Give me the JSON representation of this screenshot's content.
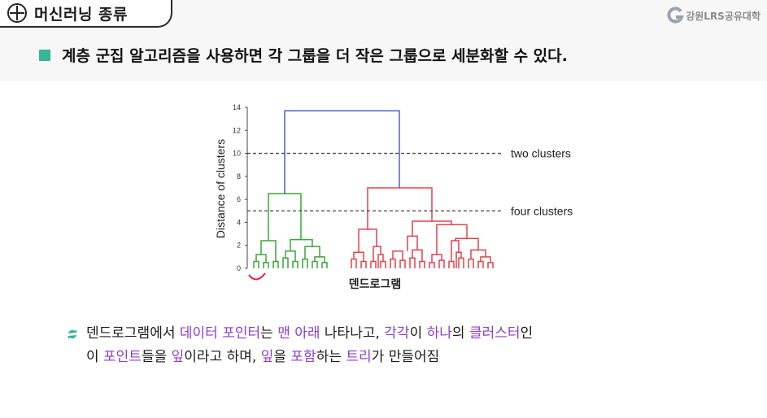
{
  "header": {
    "title": "머신러닝 종류",
    "logo_text": "강원LRS공유대학"
  },
  "headline": "계층 군집 알고리즘을 사용하면 각 그룹을 더 작은 그룹으로 세분화할 수 있다.",
  "chart_data": {
    "type": "dendrogram",
    "xlabel": "덴드로그램",
    "ylabel": "Distance of clusters",
    "ylim": [
      0,
      14
    ],
    "yticks": [
      "0",
      "2",
      "4",
      "6",
      "8",
      "10",
      "12",
      "14"
    ],
    "cut_lines": [
      {
        "label": "two clusters",
        "y": 10
      },
      {
        "label": "four clusters",
        "y": 5
      }
    ],
    "merge_heights": {
      "root": 13.7,
      "green_cluster": 6.5,
      "red_cluster": 7.0,
      "red_subcluster": 4.0
    },
    "colors": {
      "root": "#4a5fd6",
      "green": "#3aa53a",
      "red": "#e0444a",
      "cut": "#444444"
    }
  },
  "description": {
    "line1": [
      {
        "text": "덴드로그램에서 ",
        "hl": false
      },
      {
        "text": "데이터 포인터",
        "hl": true
      },
      {
        "text": "는 ",
        "hl": false
      },
      {
        "text": "맨 아래",
        "hl": true
      },
      {
        "text": " 나타나고, ",
        "hl": false
      },
      {
        "text": "각각",
        "hl": true
      },
      {
        "text": "이 ",
        "hl": false
      },
      {
        "text": "하나",
        "hl": true
      },
      {
        "text": "의 ",
        "hl": false
      },
      {
        "text": "클러스터",
        "hl": true
      },
      {
        "text": "인",
        "hl": false
      }
    ],
    "line2": [
      {
        "text": "이 ",
        "hl": false
      },
      {
        "text": "포인트",
        "hl": true
      },
      {
        "text": "들을 ",
        "hl": false
      },
      {
        "text": "잎",
        "hl": true
      },
      {
        "text": "이라고 하며, ",
        "hl": false
      },
      {
        "text": "잎",
        "hl": true
      },
      {
        "text": "을 ",
        "hl": false
      },
      {
        "text": "포함",
        "hl": true
      },
      {
        "text": "하는 ",
        "hl": false
      },
      {
        "text": "트리",
        "hl": true
      },
      {
        "text": "가 만들어짐",
        "hl": false
      }
    ]
  }
}
